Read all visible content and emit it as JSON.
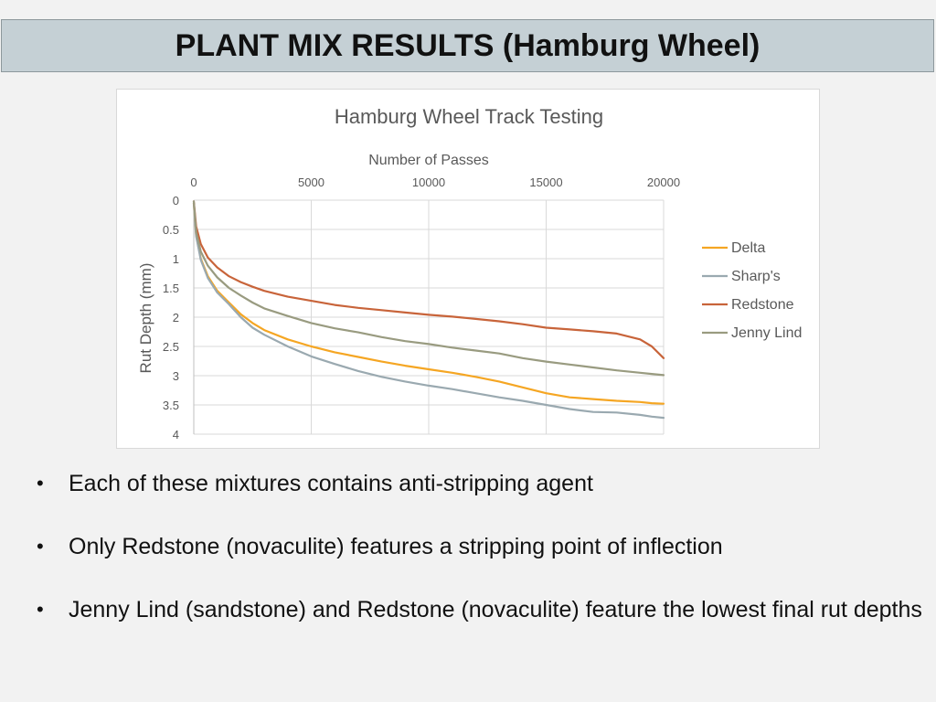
{
  "slide": {
    "title": "PLANT MIX RESULTS (Hamburg Wheel)",
    "bullets": [
      "Each of these mixtures contains anti-stripping agent",
      "Only Redstone (novaculite) features a stripping point of inflection",
      "Jenny Lind (sandstone) and Redstone (novaculite) feature the lowest final rut depths"
    ]
  },
  "chart_data": {
    "type": "line",
    "title": "Hamburg Wheel Track Testing",
    "xlabel": "Number of Passes",
    "ylabel": "Rut Depth (mm)",
    "xlim": [
      0,
      20000
    ],
    "ylim": [
      0,
      4
    ],
    "x_axis_position": "top",
    "y_axis_inverted": true,
    "xticks": [
      0,
      5000,
      10000,
      15000,
      20000
    ],
    "yticks": [
      0,
      0.5,
      1,
      1.5,
      2,
      2.5,
      3,
      3.5,
      4
    ],
    "ytick_labels": [
      "0",
      "0.5",
      "1",
      "1.5",
      "2",
      "2.5",
      "3",
      "3.5",
      "4"
    ],
    "grid": true,
    "legend": "right",
    "x": [
      0,
      100,
      300,
      600,
      1000,
      1500,
      2000,
      2500,
      3000,
      4000,
      5000,
      6000,
      7000,
      8000,
      9000,
      10000,
      11000,
      12000,
      13000,
      14000,
      15000,
      16000,
      17000,
      18000,
      19000,
      19500,
      20000
    ],
    "series": [
      {
        "name": "Delta",
        "color": "#f5a623",
        "values": [
          0.05,
          0.6,
          1.0,
          1.3,
          1.55,
          1.75,
          1.95,
          2.1,
          2.22,
          2.38,
          2.5,
          2.6,
          2.68,
          2.76,
          2.83,
          2.89,
          2.95,
          3.02,
          3.1,
          3.2,
          3.3,
          3.37,
          3.4,
          3.43,
          3.45,
          3.47,
          3.48
        ]
      },
      {
        "name": "Sharp's",
        "color": "#9aa9b0",
        "values": [
          0.05,
          0.62,
          1.02,
          1.33,
          1.58,
          1.78,
          2.0,
          2.18,
          2.3,
          2.5,
          2.67,
          2.8,
          2.92,
          3.02,
          3.1,
          3.17,
          3.23,
          3.3,
          3.37,
          3.43,
          3.5,
          3.57,
          3.62,
          3.63,
          3.67,
          3.7,
          3.72
        ]
      },
      {
        "name": "Redstone",
        "color": "#c8643a",
        "values": [
          0.02,
          0.45,
          0.75,
          0.98,
          1.15,
          1.3,
          1.4,
          1.48,
          1.55,
          1.65,
          1.72,
          1.79,
          1.84,
          1.88,
          1.92,
          1.96,
          1.99,
          2.03,
          2.07,
          2.12,
          2.18,
          2.21,
          2.24,
          2.28,
          2.38,
          2.5,
          2.7
        ]
      },
      {
        "name": "Jenny Lind",
        "color": "#999b80",
        "values": [
          0.02,
          0.55,
          0.88,
          1.12,
          1.32,
          1.5,
          1.63,
          1.75,
          1.85,
          1.98,
          2.1,
          2.19,
          2.26,
          2.34,
          2.41,
          2.46,
          2.52,
          2.57,
          2.62,
          2.7,
          2.76,
          2.81,
          2.86,
          2.91,
          2.95,
          2.97,
          2.99
        ]
      }
    ]
  }
}
